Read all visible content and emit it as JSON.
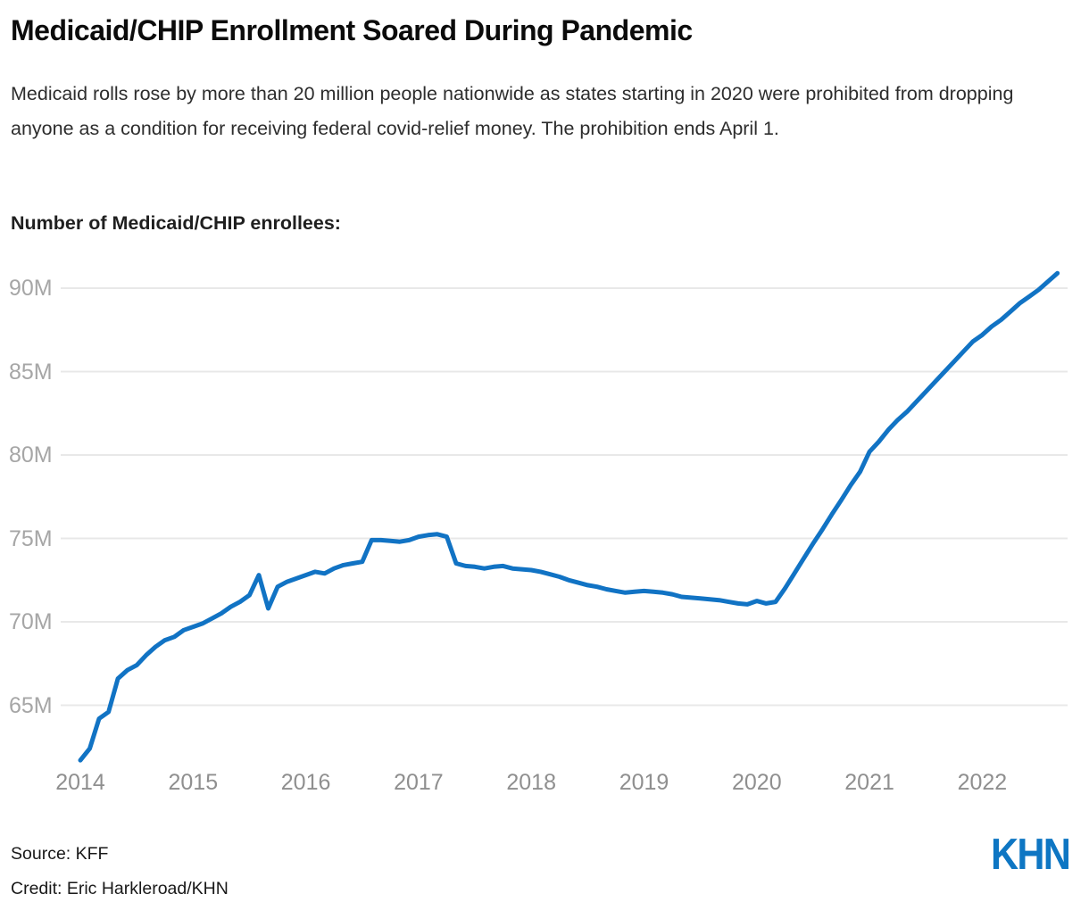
{
  "header": {
    "title": "Medicaid/CHIP Enrollment Soared During Pandemic",
    "description": "Medicaid rolls rose by more than 20 million people nationwide as states starting in 2020 were prohibited from dropping anyone as a condition for receiving federal covid-relief money. The prohibition ends April 1."
  },
  "chart_data": {
    "type": "line",
    "title": "Number of Medicaid/CHIP enrollees:",
    "series_name": "Medicaid/CHIP enrollees (millions)",
    "frequency": "monthly",
    "start_month": "2014-01",
    "end_month": "2022-09",
    "x_ticks": [
      "2014",
      "2015",
      "2016",
      "2017",
      "2018",
      "2019",
      "2020",
      "2021",
      "2022"
    ],
    "y_ticks": [
      "90M",
      "85M",
      "80M",
      "75M",
      "70M",
      "65M"
    ],
    "y_tick_values": [
      90,
      85,
      80,
      75,
      70,
      65
    ],
    "ylim": [
      61,
      92.5
    ],
    "grid": true,
    "legend_position": "none",
    "values_millions": [
      61.7,
      62.4,
      64.2,
      64.6,
      66.6,
      67.1,
      67.4,
      68.0,
      68.5,
      68.9,
      69.1,
      69.5,
      69.7,
      69.9,
      70.2,
      70.5,
      70.9,
      71.2,
      71.6,
      72.8,
      70.8,
      72.1,
      72.4,
      72.6,
      72.8,
      73.0,
      72.9,
      73.2,
      73.4,
      73.5,
      73.6,
      74.9,
      74.9,
      74.85,
      74.8,
      74.9,
      75.1,
      75.2,
      75.25,
      75.1,
      73.5,
      73.35,
      73.3,
      73.2,
      73.3,
      73.35,
      73.2,
      73.15,
      73.1,
      73.0,
      72.85,
      72.7,
      72.5,
      72.35,
      72.2,
      72.1,
      71.95,
      71.85,
      71.75,
      71.8,
      71.85,
      71.8,
      71.75,
      71.65,
      71.5,
      71.45,
      71.4,
      71.35,
      71.3,
      71.2,
      71.1,
      71.05,
      71.25,
      71.1,
      71.2,
      72.0,
      72.9,
      73.8,
      74.7,
      75.55,
      76.45,
      77.3,
      78.2,
      79.0,
      80.2,
      80.8,
      81.5,
      82.1,
      82.6,
      83.2,
      83.8,
      84.4,
      85.0,
      85.6,
      86.2,
      86.8,
      87.2,
      87.7,
      88.1,
      88.6,
      89.1,
      89.5,
      89.9,
      90.4,
      90.9
    ]
  },
  "footer": {
    "source": "Source: KFF",
    "credit": "Credit: Eric Harkleroad/KHN",
    "logo_text": "KHN"
  },
  "colors": {
    "line": "#1173c4",
    "grid": "#e8e8e8",
    "logo_blue": "#0e76c3",
    "y_tick_text": "#a6a6a6",
    "x_tick_text": "#8f8f8f"
  }
}
